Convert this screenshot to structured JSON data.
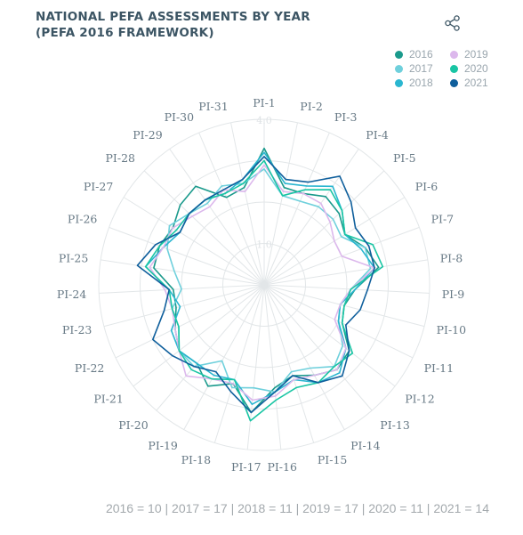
{
  "title_line1": "NATIONAL PEFA ASSESSMENTS BY YEAR",
  "title_line2": "(PEFA 2016 FRAMEWORK)",
  "share_icon": "share-icon",
  "footer_text": "2016 = 10 | 2017 = 17 | 2018 = 11 | 2019 = 17 | 2020 = 11 | 2021 = 14",
  "colors": {
    "2016": "#1b9a8c",
    "2017": "#6fd0dc",
    "2018": "#2ab6d0",
    "2019": "#dcb8ec",
    "2020": "#19c5a4",
    "2021": "#0f5f9c",
    "grid": "#e2e6e8",
    "axis_label": "#687a86",
    "title": "#3c5564"
  },
  "legend": [
    {
      "label": "2016",
      "color": "#1b9a8c"
    },
    {
      "label": "2019",
      "color": "#dcb8ec"
    },
    {
      "label": "2017",
      "color": "#6fd0dc"
    },
    {
      "label": "2020",
      "color": "#19c5a4"
    },
    {
      "label": "2018",
      "color": "#2ab6d0"
    },
    {
      "label": "2021",
      "color": "#0f5f9c"
    }
  ],
  "chart_data": {
    "type": "radar",
    "categories": [
      "PI-1",
      "PI-2",
      "PI-3",
      "PI-4",
      "PI-5",
      "PI-6",
      "PI-7",
      "PI-8",
      "PI-9",
      "PI-10",
      "PI-11",
      "PI-12",
      "PI-13",
      "PI-14",
      "PI-15",
      "PI-16",
      "PI-17",
      "PI-18",
      "PI-19",
      "PI-20",
      "PI-21",
      "PI-22",
      "PI-23",
      "PI-24",
      "PI-25",
      "PI-26",
      "PI-27",
      "PI-28",
      "PI-29",
      "PI-30",
      "PI-31"
    ],
    "radial_ticks": [
      "4.0",
      "1.0"
    ],
    "rlim": [
      1,
      4
    ],
    "grid": true,
    "legend_position": "top-right",
    "series": [
      {
        "name": "2016",
        "values": [
          3.3,
          2.4,
          2.4,
          2.6,
          2.5,
          2.3,
          2.6,
          2.8,
          2.2,
          2.0,
          2.1,
          2.6,
          2.7,
          2.5,
          2.3,
          2.5,
          3.1,
          2.5,
          2.8,
          2.5,
          2.6,
          2.4,
          2.2,
          2.2,
          2.7,
          2.7,
          2.6,
          2.8,
          2.9,
          2.3,
          2.4
        ]
      },
      {
        "name": "2017",
        "values": [
          2.8,
          2.2,
          2.2,
          2.3,
          2.3,
          2.2,
          2.6,
          2.6,
          2.1,
          1.9,
          2.0,
          2.4,
          2.6,
          2.3,
          2.2,
          2.6,
          2.5,
          2.6,
          2.1,
          2.6,
          2.6,
          2.3,
          2.3,
          2.0,
          2.2,
          2.5,
          2.7,
          2.5,
          2.4,
          2.6,
          2.5
        ]
      },
      {
        "name": "2018",
        "values": [
          3.2,
          2.5,
          2.6,
          2.9,
          2.6,
          2.3,
          2.5,
          2.7,
          2.2,
          1.9,
          2.0,
          2.5,
          2.8,
          2.7,
          2.4,
          2.6,
          2.9,
          2.4,
          2.5,
          2.5,
          2.6,
          2.5,
          2.1,
          2.3,
          2.9,
          2.6,
          2.4,
          2.5,
          2.5,
          2.4,
          2.6
        ]
      },
      {
        "name": "2019",
        "values": [
          2.9,
          2.3,
          2.4,
          2.4,
          2.2,
          2.0,
          2.0,
          2.7,
          2.1,
          1.9,
          1.9,
          2.5,
          2.7,
          2.5,
          2.4,
          2.7,
          2.8,
          2.5,
          2.6,
          2.9,
          2.6,
          2.4,
          2.3,
          2.4,
          2.8,
          2.6,
          2.6,
          2.4,
          2.3,
          2.5,
          2.3
        ]
      },
      {
        "name": "2020",
        "values": [
          3.0,
          2.2,
          2.5,
          2.8,
          2.6,
          2.3,
          2.8,
          2.9,
          2.1,
          2.0,
          2.1,
          2.7,
          2.6,
          2.7,
          2.6,
          2.8,
          3.3,
          2.4,
          2.6,
          2.7,
          2.6,
          2.3,
          2.3,
          2.3,
          2.9,
          2.7,
          2.5,
          2.5,
          2.5,
          2.4,
          2.5
        ]
      },
      {
        "name": "2021",
        "values": [
          3.1,
          2.6,
          2.7,
          3.2,
          2.9,
          2.6,
          2.7,
          2.7,
          2.5,
          2.4,
          2.2,
          2.6,
          2.9,
          2.7,
          2.3,
          2.6,
          3.1,
          2.7,
          2.4,
          2.6,
          2.8,
          3.0,
          2.5,
          2.3,
          3.1,
          2.8,
          2.4,
          2.5,
          2.5,
          2.5,
          2.6
        ]
      }
    ]
  }
}
